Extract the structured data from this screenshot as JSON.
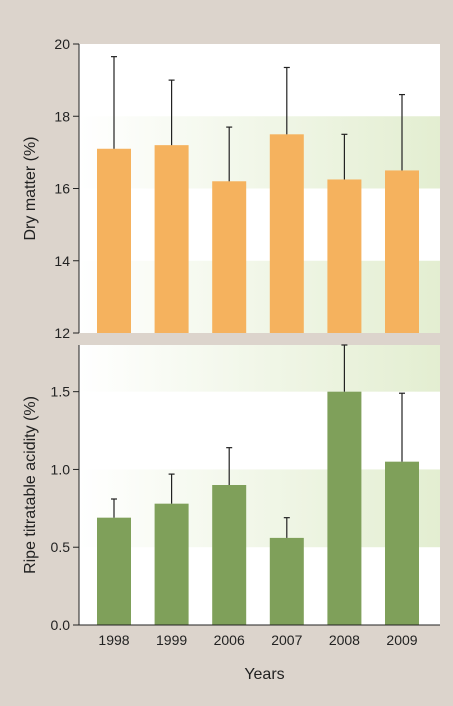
{
  "chart_data": [
    {
      "type": "bar",
      "categories": [
        "1998",
        "1999",
        "2006",
        "2007",
        "2008",
        "2009"
      ],
      "values": [
        17.1,
        17.2,
        16.2,
        17.5,
        16.25,
        16.5
      ],
      "error_upper": [
        19.65,
        19.0,
        17.7,
        19.35,
        17.5,
        18.6
      ],
      "ylabel": "Dry matter (%)",
      "ylim": [
        12,
        20
      ],
      "yticks": [
        12,
        14,
        16,
        18,
        20
      ],
      "ytick_labels": [
        "12",
        "14",
        "16",
        "18",
        "20"
      ],
      "bar_color": "#f5b25e",
      "band_color": "#e3eed1",
      "grid": false
    },
    {
      "type": "bar",
      "categories": [
        "1998",
        "1999",
        "2006",
        "2007",
        "2008",
        "2009"
      ],
      "values": [
        0.69,
        0.78,
        0.9,
        0.56,
        1.5,
        1.05
      ],
      "error_upper": [
        0.81,
        0.97,
        1.14,
        0.69,
        1.8,
        1.49
      ],
      "ylabel": "Ripe titratable acidity (%)",
      "xlabel": "Years",
      "ylim": [
        0,
        1.8
      ],
      "yticks": [
        0,
        0.5,
        1.0,
        1.5
      ],
      "ytick_labels": [
        "0.0",
        "0.5",
        "1.0",
        "1.5"
      ],
      "bar_color": "#7fa05a",
      "band_color": "#e3eed1",
      "grid": false
    }
  ]
}
